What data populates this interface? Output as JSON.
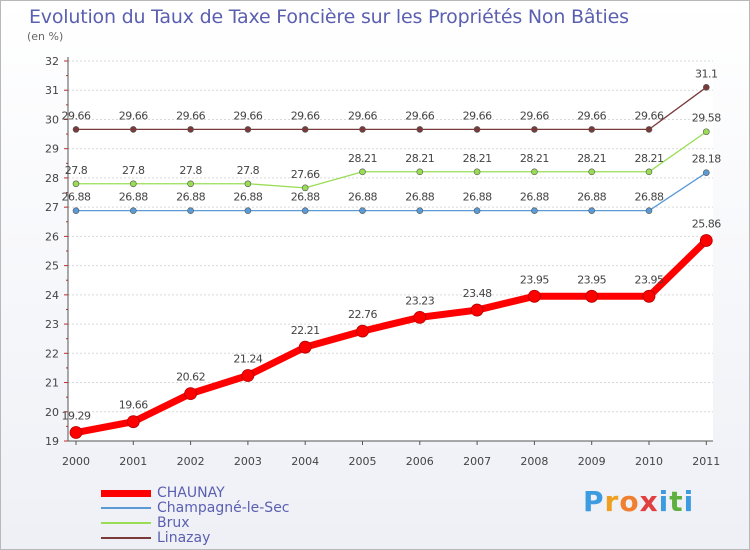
{
  "header": {
    "title": "Evolution du Taux de Taxe Foncière sur les Propriétés Non Bâties",
    "unit": "(en %)"
  },
  "brand": {
    "letters": [
      "P",
      "r",
      "o",
      "x",
      "i",
      "t",
      "i"
    ],
    "letter_colors": [
      "#3d9be0",
      "#f0a020",
      "#f08030",
      "#e04040",
      "#3d9be0",
      "#60b040",
      "#3d9be0"
    ]
  },
  "chart_data": {
    "type": "line",
    "title": "Evolution du Taux de Taxe Foncière sur les Propriétés Non Bâties",
    "ylabel": "(en %)",
    "xlabel": "",
    "ylim": [
      19,
      32
    ],
    "yticks": [
      "19",
      "20",
      "21",
      "22",
      "23",
      "24",
      "25",
      "26",
      "27",
      "28",
      "29",
      "30",
      "31",
      "32"
    ],
    "categories": [
      "2000",
      "2001",
      "2002",
      "2003",
      "2004",
      "2005",
      "2006",
      "2007",
      "2008",
      "2009",
      "2010",
      "2011"
    ],
    "grid": "horizontal",
    "legend_position": "bottom-left",
    "series": [
      {
        "name": "CHAUNAY",
        "color": "#ff0000",
        "values": [
          19.29,
          19.66,
          20.62,
          21.24,
          22.21,
          22.76,
          23.23,
          23.48,
          23.95,
          23.95,
          23.95,
          25.86
        ],
        "labels": [
          "19.29",
          "19.66",
          "20.62",
          "21.24",
          "22.21",
          "22.76",
          "23.23",
          "23.48",
          "23.95",
          "23.95",
          "23.95",
          "25.86"
        ]
      },
      {
        "name": "Champagné-le-Sec",
        "color": "#5b9bd5",
        "values": [
          26.88,
          26.88,
          26.88,
          26.88,
          26.88,
          26.88,
          26.88,
          26.88,
          26.88,
          26.88,
          26.88,
          28.18
        ],
        "labels": [
          "26.88",
          "26.88",
          "26.88",
          "26.88",
          "26.88",
          "26.88",
          "26.88",
          "26.88",
          "26.88",
          "26.88",
          "26.88",
          "28.18"
        ]
      },
      {
        "name": "Brux",
        "color": "#99dd55",
        "values": [
          27.8,
          27.8,
          27.8,
          27.8,
          27.66,
          28.21,
          28.21,
          28.21,
          28.21,
          28.21,
          28.21,
          29.58
        ],
        "labels": [
          "27.8",
          "27.8",
          "27.8",
          "27.8",
          "27.66",
          "28.21",
          "28.21",
          "28.21",
          "28.21",
          "28.21",
          "28.21",
          "29.58"
        ]
      },
      {
        "name": "Linazay",
        "color": "#7a3a3a",
        "values": [
          29.66,
          29.66,
          29.66,
          29.66,
          29.66,
          29.66,
          29.66,
          29.66,
          29.66,
          29.66,
          29.66,
          31.1
        ],
        "labels": [
          "29.66",
          "29.66",
          "29.66",
          "29.66",
          "29.66",
          "29.66",
          "29.66",
          "29.66",
          "29.66",
          "29.66",
          "29.66",
          "31.1"
        ]
      }
    ]
  }
}
